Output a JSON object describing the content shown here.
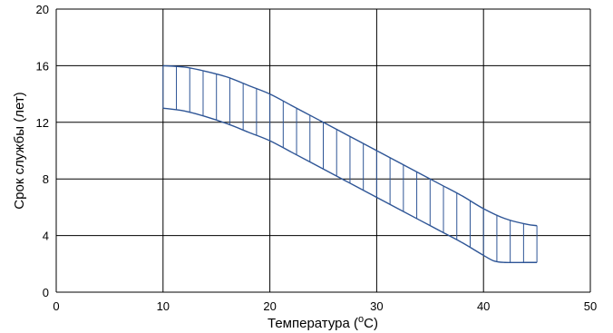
{
  "chart_data": {
    "type": "area",
    "title": "",
    "xlabel": "Температура (",
    "xlabel_superscript": "o",
    "xlabel_suffix": "C)",
    "ylabel": "Срок службы (лет)",
    "xlim": [
      0,
      50
    ],
    "ylim": [
      0,
      20
    ],
    "x_ticks": [
      "0",
      "10",
      "20",
      "30",
      "40",
      "50"
    ],
    "y_ticks": [
      "0",
      "4",
      "8",
      "12",
      "16",
      "20"
    ],
    "grid": true,
    "band_color": "#2e5596",
    "grid_color": "#000000",
    "fill_pattern": "vertical-hatch",
    "series": [
      {
        "role": "upper",
        "x": [
          10,
          12,
          14,
          16,
          18,
          20,
          22,
          24,
          26,
          28,
          30,
          32,
          34,
          36,
          38,
          40,
          42,
          44,
          45
        ],
        "values": [
          16.0,
          15.9,
          15.6,
          15.2,
          14.6,
          14.0,
          13.2,
          12.4,
          11.6,
          10.8,
          10.0,
          9.2,
          8.4,
          7.6,
          6.8,
          5.9,
          5.2,
          4.8,
          4.7
        ]
      },
      {
        "role": "lower",
        "x": [
          10,
          12,
          14,
          16,
          18,
          20,
          22,
          24,
          26,
          28,
          30,
          32,
          34,
          36,
          38,
          40,
          41,
          42,
          44,
          45
        ],
        "values": [
          13.0,
          12.8,
          12.4,
          11.9,
          11.3,
          10.7,
          9.9,
          9.1,
          8.3,
          7.5,
          6.7,
          5.9,
          5.1,
          4.3,
          3.5,
          2.6,
          2.2,
          2.1,
          2.1,
          2.1
        ]
      }
    ]
  }
}
